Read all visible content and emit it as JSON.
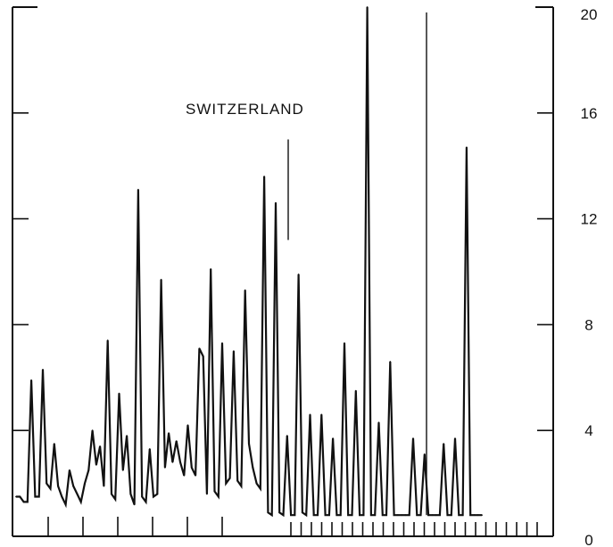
{
  "chart_data": {
    "type": "line",
    "title": "SWITZERLAND",
    "xlabel": "",
    "ylabel": "",
    "ylim": [
      0,
      20
    ],
    "y_ticks": [
      "0",
      "4",
      "8",
      "12",
      "16",
      "20"
    ],
    "grid": false,
    "series": [
      {
        "values": [
          1.5,
          1.5,
          1.3,
          1.3,
          5.9,
          1.5,
          1.5,
          6.3,
          2.0,
          1.8,
          3.5,
          1.9,
          1.5,
          1.2,
          2.5,
          1.9,
          1.6,
          1.3,
          2.0,
          2.5,
          4.0,
          2.7,
          3.4,
          1.9,
          7.4,
          1.6,
          1.4,
          5.4,
          2.5,
          3.8,
          1.6,
          1.2,
          13.1,
          1.5,
          1.3,
          3.3,
          1.5,
          1.6,
          9.7,
          2.6,
          3.9,
          2.8,
          3.6,
          2.8,
          2.3,
          4.2,
          2.6,
          2.3,
          7.1,
          6.8,
          1.6,
          10.1,
          1.7,
          1.5,
          7.3,
          2.0,
          2.2,
          7.0,
          2.1,
          1.9,
          9.3,
          3.5,
          2.6,
          2.0,
          1.8,
          13.6,
          0.9,
          0.8,
          12.6,
          0.9,
          0.8,
          3.8,
          0.8,
          0.8,
          9.9,
          0.9,
          0.8,
          4.6,
          0.8,
          0.8,
          4.6,
          0.8,
          0.8,
          3.7,
          0.8,
          0.8,
          7.3,
          0.8,
          0.8,
          5.5,
          0.8,
          0.8,
          20.0,
          0.8,
          0.8,
          4.3,
          0.8,
          0.8,
          6.6,
          0.8,
          0.8,
          0.8,
          0.8,
          0.8,
          3.7,
          0.8,
          0.8,
          3.1,
          0.8,
          0.8,
          0.8,
          0.8,
          3.5,
          0.8,
          0.8,
          3.7,
          0.8,
          0.8,
          14.7,
          0.8,
          0.8,
          0.8,
          0.8
        ]
      }
    ]
  }
}
